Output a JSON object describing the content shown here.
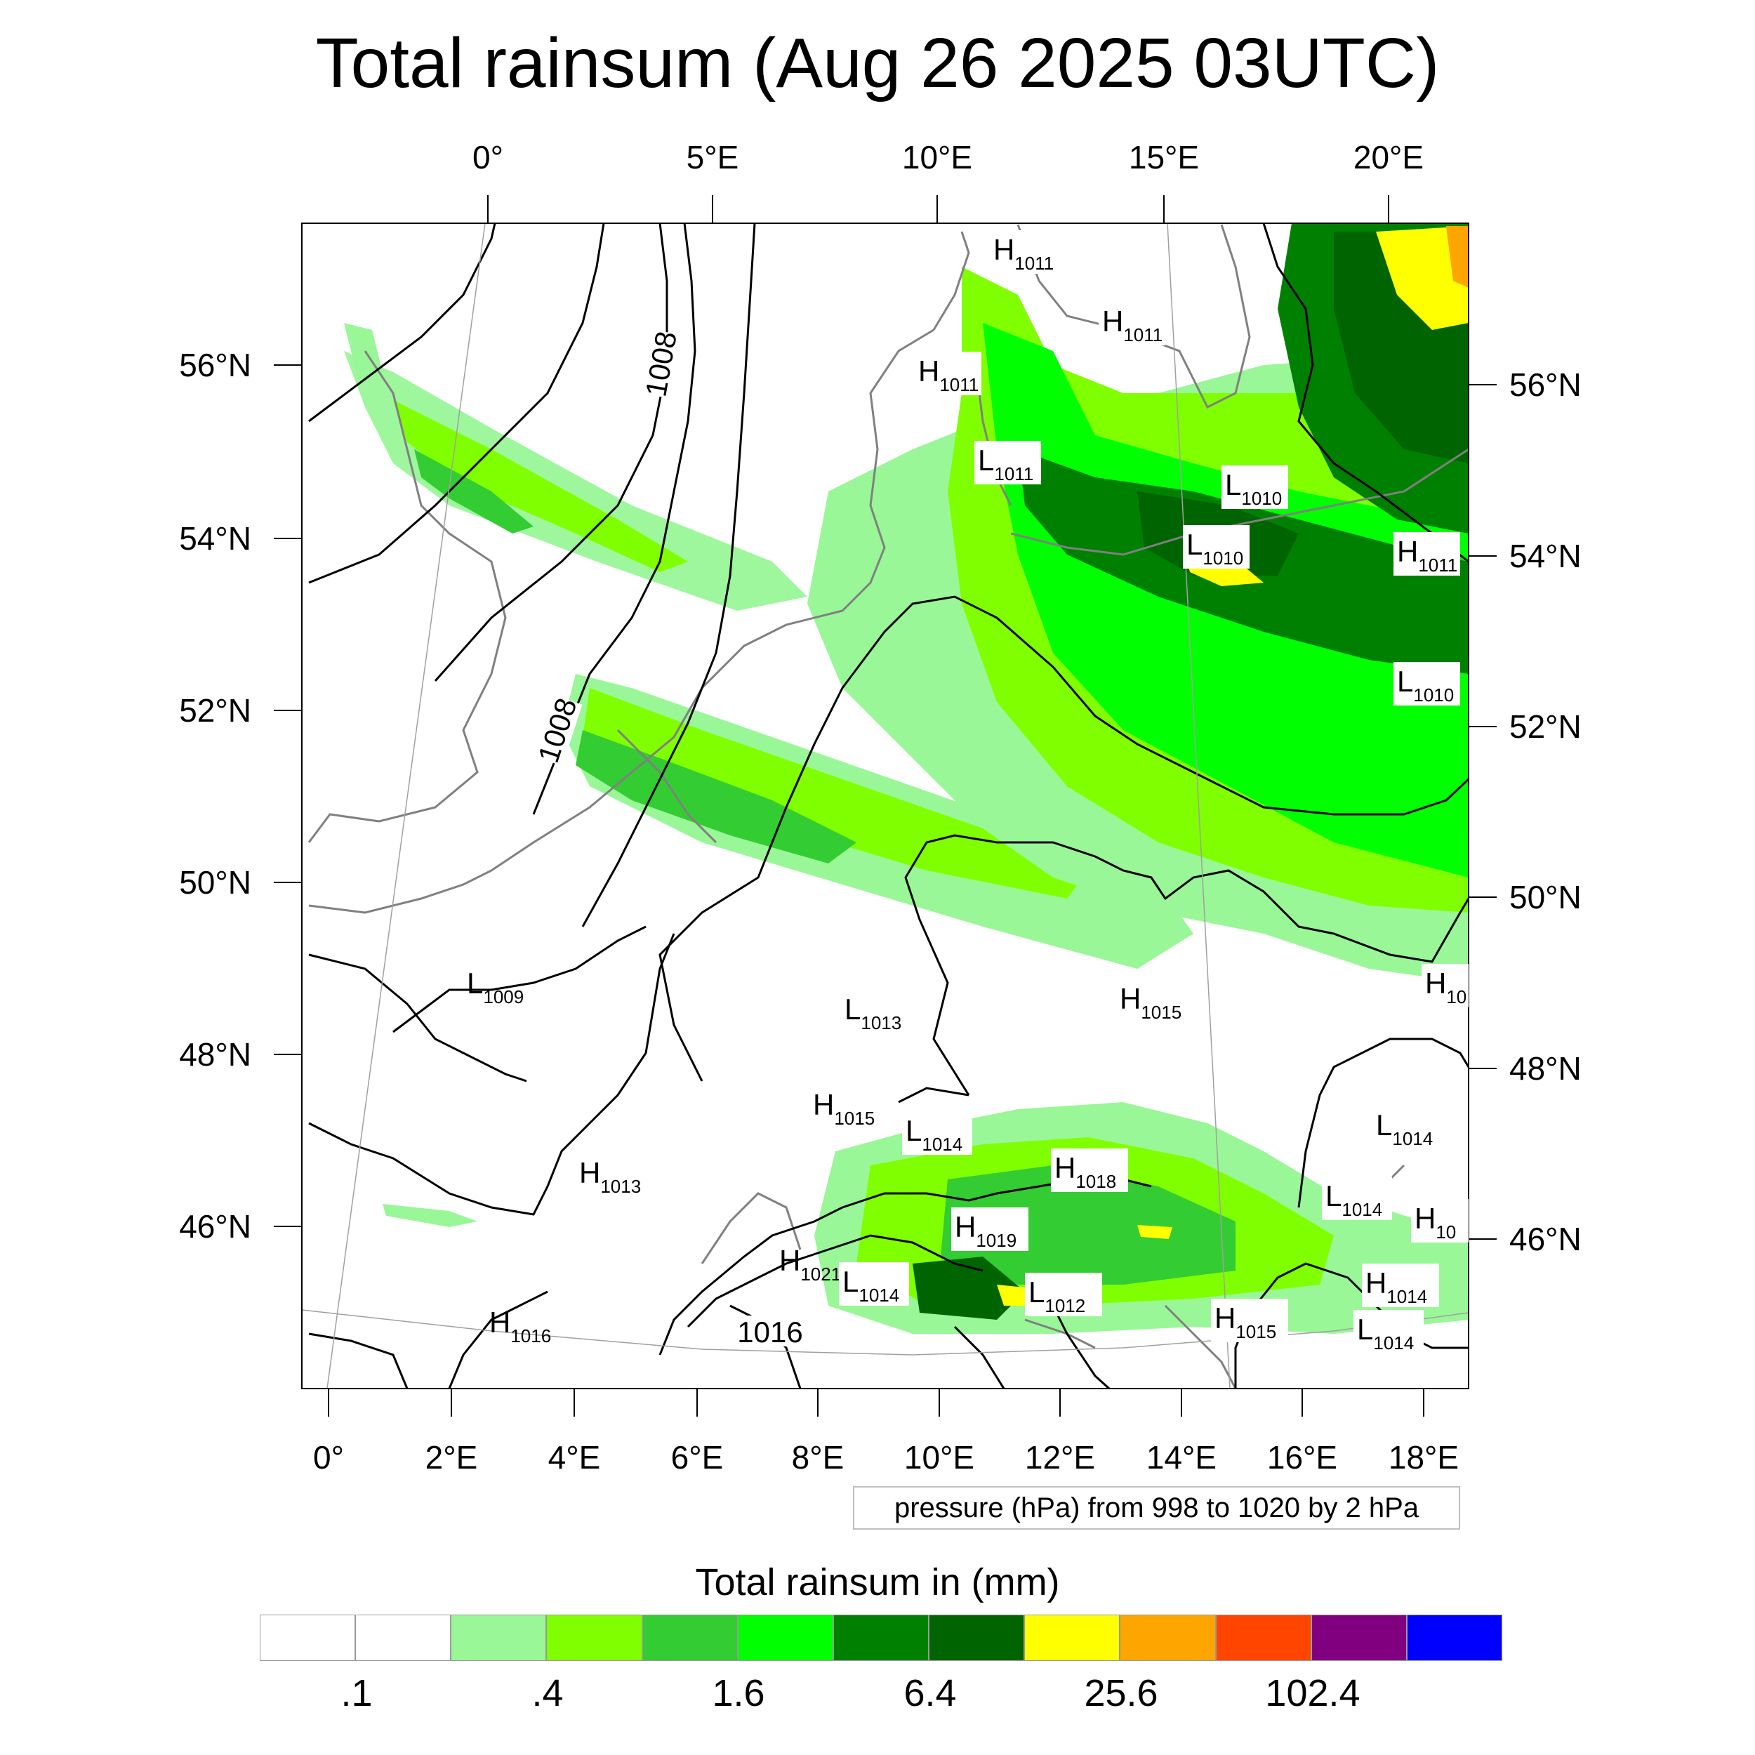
{
  "title": "Total rainsum (Aug 26 2025 03UTC)",
  "top_lon_labels": [
    "0°",
    "5°E",
    "10°E",
    "15°E",
    "20°E"
  ],
  "bottom_lon_labels": [
    "0°",
    "2°E",
    "4°E",
    "6°E",
    "8°E",
    "10°E",
    "12°E",
    "14°E",
    "16°E",
    "18°E"
  ],
  "left_lat_labels": [
    "56°N",
    "54°N",
    "52°N",
    "50°N",
    "48°N",
    "46°N"
  ],
  "right_lat_labels": [
    "56°N",
    "54°N",
    "52°N",
    "50°N",
    "48°N",
    "46°N"
  ],
  "isobar_labels": [
    "1008",
    "1008",
    "1016"
  ],
  "pressure_centers": [
    {
      "t": "H",
      "v": "1011"
    },
    {
      "t": "H",
      "v": "1011"
    },
    {
      "t": "H",
      "v": "1011"
    },
    {
      "t": "L",
      "v": "1011"
    },
    {
      "t": "L",
      "v": "1010"
    },
    {
      "t": "L",
      "v": "1010"
    },
    {
      "t": "H",
      "v": "1011"
    },
    {
      "t": "L",
      "v": "1010"
    },
    {
      "t": "H",
      "v": "10"
    },
    {
      "t": "L",
      "v": "1009"
    },
    {
      "t": "L",
      "v": "1013"
    },
    {
      "t": "H",
      "v": "1015"
    },
    {
      "t": "H",
      "v": "1015"
    },
    {
      "t": "L",
      "v": "1014"
    },
    {
      "t": "H",
      "v": "1018"
    },
    {
      "t": "L",
      "v": "1014"
    },
    {
      "t": "H",
      "v": "1013"
    },
    {
      "t": "L",
      "v": "1014"
    },
    {
      "t": "H",
      "v": "1019"
    },
    {
      "t": "H",
      "v": "10"
    },
    {
      "t": "H",
      "v": "1021"
    },
    {
      "t": "L",
      "v": "1014"
    },
    {
      "t": "L",
      "v": "1012"
    },
    {
      "t": "H",
      "v": "1014"
    },
    {
      "t": "H",
      "v": "1016"
    },
    {
      "t": "H",
      "v": "1015"
    },
    {
      "t": "L",
      "v": "1014"
    }
  ],
  "info_box": "pressure (hPa) from 998 to 1020 by 2 hPa",
  "colorbar": {
    "title": "Total rainsum in (mm)",
    "colors": [
      "#ffffff",
      "#ffffff",
      "#99f797",
      "#80ff00",
      "#33cc33",
      "#00ff00",
      "#008000",
      "#006400",
      "#ffff00",
      "#ffa500",
      "#ff4500",
      "#800080",
      "#0000ff"
    ],
    "labels": [
      ".1",
      ".4",
      "1.6",
      "6.4",
      "25.6",
      "102.4"
    ]
  },
  "colors": {
    "coastline": "#808080",
    "isobar": "#000000",
    "gridline": "#a0a0a0"
  }
}
